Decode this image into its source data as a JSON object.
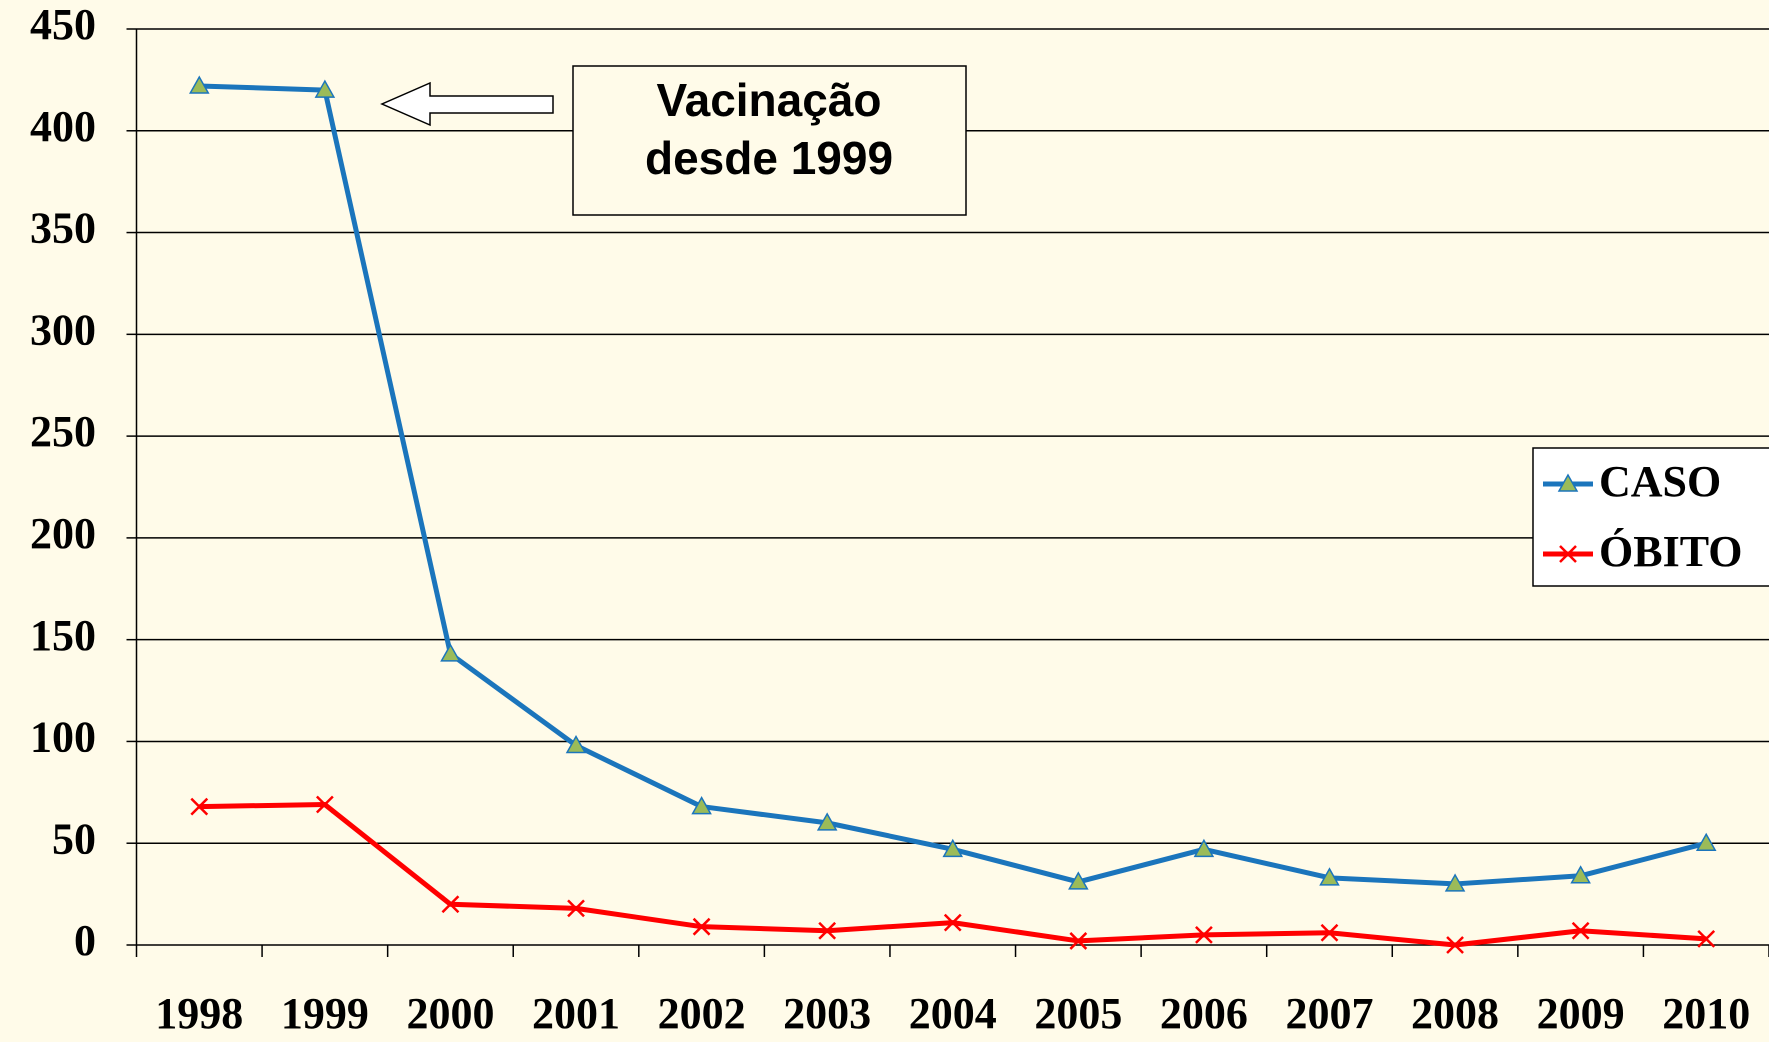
{
  "chart_data": {
    "type": "line",
    "categories": [
      "1998",
      "1999",
      "2000",
      "2001",
      "2002",
      "2003",
      "2004",
      "2005",
      "2006",
      "2007",
      "2008",
      "2009",
      "2010"
    ],
    "series": [
      {
        "name": "CASO",
        "color": "#1b75bc",
        "marker": "triangle",
        "marker_color": "#9bbb59",
        "values": [
          422,
          420,
          143,
          98,
          68,
          60,
          47,
          31,
          47,
          33,
          30,
          34,
          50
        ]
      },
      {
        "name": "ÓBITO",
        "color": "#ff0000",
        "marker": "x",
        "marker_color": "#ff0000",
        "values": [
          68,
          69,
          20,
          18,
          9,
          7,
          11,
          2,
          5,
          6,
          0,
          7,
          3
        ]
      }
    ],
    "ylim": [
      0,
      450
    ],
    "yticks": [
      0,
      50,
      100,
      150,
      200,
      250,
      300,
      350,
      400,
      450
    ],
    "grid": true,
    "legend": "right",
    "annotation": [
      "Vacinação",
      "desde 1999"
    ]
  }
}
